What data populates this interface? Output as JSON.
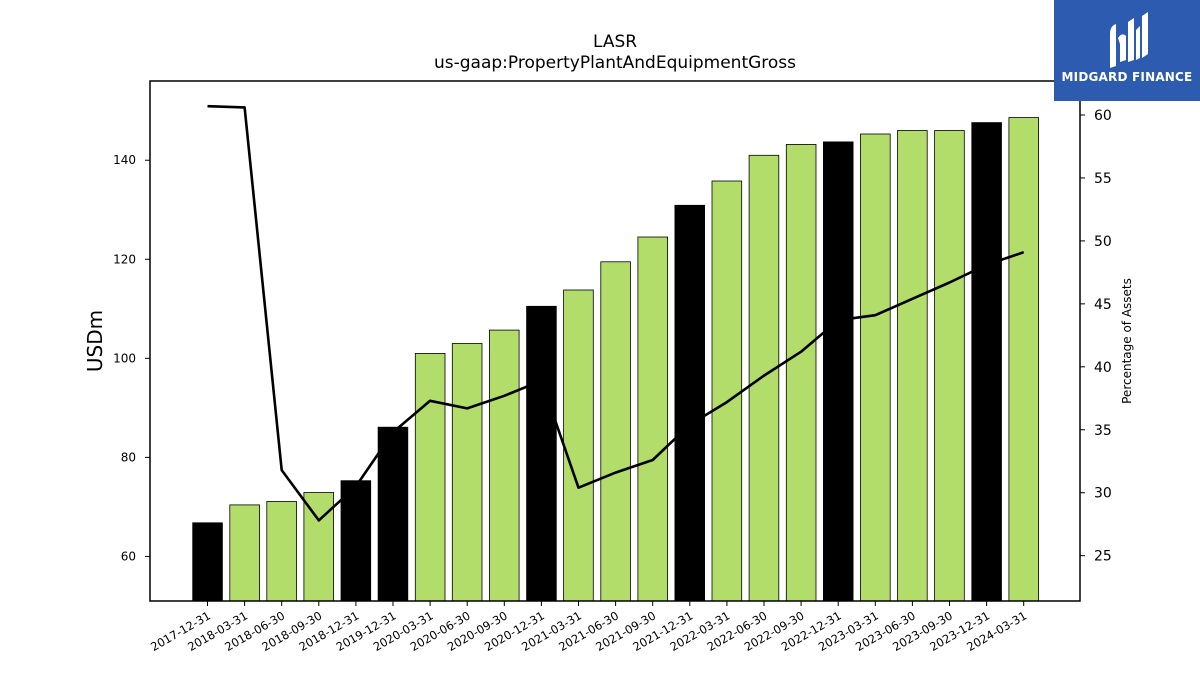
{
  "chart_data": {
    "type": "bar",
    "title": "LASR",
    "subtitle": "us-gaap:PropertyPlantAndEquipmentGross",
    "ylabel": "USDm",
    "y2label": "Percentage of Assets",
    "categories": [
      "2017-12-31",
      "2018-03-31",
      "2018-06-30",
      "2018-09-30",
      "2018-12-31",
      "2019-12-31",
      "2020-03-31",
      "2020-06-30",
      "2020-09-30",
      "2020-12-31",
      "2021-03-31",
      "2021-06-30",
      "2021-09-30",
      "2021-12-31",
      "2022-03-31",
      "2022-06-30",
      "2022-09-30",
      "2022-12-31",
      "2023-03-31",
      "2023-06-30",
      "2023-09-30",
      "2023-12-31",
      "2024-03-31"
    ],
    "series": [
      {
        "values": [
          66.8,
          70.4,
          71.1,
          72.9,
          75.3,
          86.1,
          101.0,
          103.0,
          105.7,
          110.5,
          113.8,
          119.5,
          124.5,
          130.9,
          135.8,
          141.0,
          143.2,
          143.7,
          145.3,
          146.0,
          146.0,
          147.6,
          148.6
        ],
        "highlight": [
          true,
          false,
          false,
          false,
          true,
          true,
          false,
          false,
          false,
          true,
          false,
          false,
          false,
          true,
          false,
          false,
          false,
          true,
          false,
          false,
          false,
          true,
          false
        ]
      },
      {
        "type": "line",
        "axis": "right",
        "values": [
          60.7,
          60.6,
          31.8,
          27.8,
          30.5,
          34.8,
          37.3,
          36.7,
          37.7,
          38.9,
          30.4,
          31.6,
          32.6,
          35.4,
          37.2,
          39.3,
          41.2,
          43.7,
          44.1,
          45.4,
          46.7,
          48.1,
          49.1
        ]
      }
    ],
    "ylim": [
      51,
      156
    ],
    "y2lim": [
      21.4,
      62.7
    ],
    "yticks": [
      60,
      80,
      100,
      120,
      140
    ],
    "y2ticks": [
      25,
      30,
      35,
      40,
      45,
      50,
      55,
      60
    ],
    "colors": {
      "bar": "#b3dd6a",
      "highlight_bar": "#000000",
      "line": "#000000",
      "logo_bg": "#2d5bb0"
    }
  },
  "logo": {
    "text": "MIDGARD FINANCE"
  }
}
